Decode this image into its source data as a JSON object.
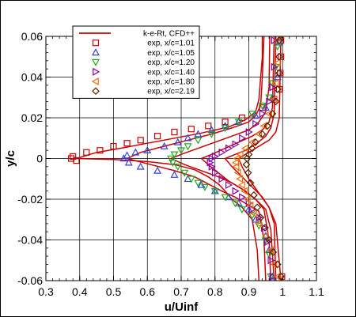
{
  "chart_data": {
    "type": "scatter",
    "xlabel": "u/Uinf",
    "ylabel": "y/c",
    "xlim": [
      0.3,
      1.1
    ],
    "ylim": [
      -0.06,
      0.06
    ],
    "x_ticks": [
      0.3,
      0.4,
      0.5,
      0.6,
      0.7,
      0.8,
      0.9,
      1,
      1.1
    ],
    "y_ticks": [
      -0.06,
      -0.04,
      -0.02,
      0,
      0.02,
      0.04,
      0.06
    ],
    "grid": true,
    "legend_position": "top-left",
    "series": [
      {
        "name": "k-e-Rt, CFD++",
        "kind": "line",
        "color": "#cc0000",
        "group": "cfd",
        "curves": [
          {
            "x": [
              0.39,
              0.45,
              0.52,
              0.6,
              0.68,
              0.76,
              0.84,
              0.89,
              0.92,
              0.93,
              0.935,
              0.94,
              0.94
            ],
            "y": [
              0,
              0.003,
              0.005,
              0.0075,
              0.01,
              0.0125,
              0.0155,
              0.019,
              0.023,
              0.029,
              0.04,
              0.05,
              0.06
            ]
          },
          {
            "x": [
              0.39,
              0.5,
              0.6,
              0.68,
              0.74,
              0.78,
              0.81,
              0.83,
              0.85,
              0.88,
              0.91,
              0.925,
              0.93
            ],
            "y": [
              0,
              -0.0005,
              -0.0015,
              -0.003,
              -0.0055,
              -0.009,
              -0.0125,
              -0.016,
              -0.02,
              -0.024,
              -0.03,
              -0.045,
              -0.06
            ]
          },
          {
            "x": [
              0.54,
              0.58,
              0.65,
              0.72,
              0.79,
              0.85,
              0.9,
              0.92,
              0.935,
              0.94,
              0.945
            ],
            "y": [
              0,
              0.003,
              0.006,
              0.009,
              0.012,
              0.015,
              0.018,
              0.021,
              0.026,
              0.04,
              0.06
            ]
          },
          {
            "x": [
              0.54,
              0.61,
              0.68,
              0.74,
              0.78,
              0.82,
              0.86,
              0.89,
              0.93,
              0.945,
              0.95
            ],
            "y": [
              0,
              -0.003,
              -0.006,
              -0.009,
              -0.0125,
              -0.016,
              -0.019,
              -0.022,
              -0.026,
              -0.04,
              -0.06
            ]
          },
          {
            "x": [
              0.67,
              0.7,
              0.75,
              0.8,
              0.85,
              0.9,
              0.93,
              0.95,
              0.96,
              0.962
            ],
            "y": [
              0,
              0.002,
              0.005,
              0.008,
              0.011,
              0.014,
              0.018,
              0.023,
              0.035,
              0.06
            ]
          },
          {
            "x": [
              0.67,
              0.71,
              0.76,
              0.81,
              0.85,
              0.89,
              0.92,
              0.945,
              0.96,
              0.965
            ],
            "y": [
              0,
              -0.003,
              -0.006,
              -0.009,
              -0.012,
              -0.016,
              -0.02,
              -0.025,
              -0.04,
              -0.06
            ]
          },
          {
            "x": [
              0.76,
              0.79,
              0.83,
              0.87,
              0.91,
              0.94,
              0.96,
              0.97,
              0.975
            ],
            "y": [
              0,
              0.002,
              0.005,
              0.008,
              0.011,
              0.014,
              0.018,
              0.025,
              0.06
            ]
          },
          {
            "x": [
              0.76,
              0.78,
              0.81,
              0.84,
              0.88,
              0.92,
              0.95,
              0.965,
              0.975
            ],
            "y": [
              0,
              -0.003,
              -0.007,
              -0.011,
              -0.015,
              -0.02,
              -0.025,
              -0.035,
              -0.06
            ]
          },
          {
            "x": [
              0.83,
              0.86,
              0.89,
              0.92,
              0.95,
              0.965,
              0.975,
              0.98
            ],
            "y": [
              0,
              0.002,
              0.004,
              0.007,
              0.011,
              0.015,
              0.022,
              0.06
            ]
          },
          {
            "x": [
              0.83,
              0.85,
              0.88,
              0.91,
              0.94,
              0.96,
              0.975,
              0.98
            ],
            "y": [
              0,
              -0.004,
              -0.009,
              -0.014,
              -0.019,
              -0.024,
              -0.032,
              -0.06
            ]
          },
          {
            "x": [
              0.87,
              0.9,
              0.93,
              0.96,
              0.98,
              0.99,
              0.995
            ],
            "y": [
              0,
              0.003,
              0.006,
              0.009,
              0.013,
              0.02,
              0.06
            ]
          },
          {
            "x": [
              0.87,
              0.88,
              0.9,
              0.93,
              0.96,
              0.98,
              0.995
            ],
            "y": [
              0,
              -0.004,
              -0.01,
              -0.017,
              -0.024,
              -0.032,
              -0.06
            ]
          }
        ]
      },
      {
        "name": "exp, x/c=1.01",
        "kind": "marker",
        "marker": "square",
        "color": "#cc0000",
        "points": [
          [
            0.995,
            0.058
          ],
          [
            0.995,
            0.05
          ],
          [
            0.993,
            0.042
          ],
          [
            0.99,
            0.034
          ],
          [
            0.975,
            0.029
          ],
          [
            0.94,
            0.025
          ],
          [
            0.88,
            0.02
          ],
          [
            0.83,
            0.018
          ],
          [
            0.78,
            0.016
          ],
          [
            0.73,
            0.0145
          ],
          [
            0.68,
            0.013
          ],
          [
            0.63,
            0.011
          ],
          [
            0.58,
            0.009
          ],
          [
            0.54,
            0.0075
          ],
          [
            0.5,
            0.006
          ],
          [
            0.46,
            0.004
          ],
          [
            0.42,
            0.003
          ],
          [
            0.38,
            0.001
          ],
          [
            0.375,
            0
          ],
          [
            0.39,
            -0.001
          ],
          [
            0.998,
            -0.058
          ]
        ]
      },
      {
        "name": "exp, x/c=1.05",
        "kind": "marker",
        "marker": "triangle-up",
        "color": "#3344dd",
        "points": [
          [
            0.99,
            0.057
          ],
          [
            0.985,
            0.04
          ],
          [
            0.97,
            0.03
          ],
          [
            0.95,
            0.025
          ],
          [
            0.92,
            0.021
          ],
          [
            0.87,
            0.018
          ],
          [
            0.83,
            0.016
          ],
          [
            0.79,
            0.014
          ],
          [
            0.75,
            0.012
          ],
          [
            0.72,
            0.01
          ],
          [
            0.69,
            0.008
          ],
          [
            0.65,
            0.006
          ],
          [
            0.6,
            0.004
          ],
          [
            0.565,
            0.003
          ],
          [
            0.54,
            0.0015
          ],
          [
            0.53,
            0
          ],
          [
            0.545,
            -0.002
          ],
          [
            0.58,
            -0.004
          ],
          [
            0.63,
            -0.006
          ],
          [
            0.68,
            -0.008
          ],
          [
            0.72,
            -0.01
          ],
          [
            0.76,
            -0.013
          ],
          [
            0.8,
            -0.016
          ],
          [
            0.84,
            -0.019
          ],
          [
            0.87,
            -0.022
          ],
          [
            0.9,
            -0.025
          ],
          [
            0.92,
            -0.03
          ],
          [
            0.95,
            -0.038
          ],
          [
            0.96,
            -0.045
          ],
          [
            0.97,
            -0.058
          ]
        ]
      },
      {
        "name": "exp, x/c=1.20",
        "kind": "marker",
        "marker": "triangle-down",
        "color": "#22aa22",
        "points": [
          [
            0.985,
            0.055
          ],
          [
            0.98,
            0.045
          ],
          [
            0.97,
            0.037
          ],
          [
            0.96,
            0.03
          ],
          [
            0.94,
            0.026
          ],
          [
            0.91,
            0.022
          ],
          [
            0.87,
            0.018
          ],
          [
            0.83,
            0.015
          ],
          [
            0.79,
            0.012
          ],
          [
            0.75,
            0.009
          ],
          [
            0.72,
            0.006
          ],
          [
            0.7,
            0.004
          ],
          [
            0.68,
            0.002
          ],
          [
            0.67,
            0
          ],
          [
            0.675,
            -0.002
          ],
          [
            0.69,
            -0.004
          ],
          [
            0.71,
            -0.007
          ],
          [
            0.73,
            -0.01
          ],
          [
            0.75,
            -0.012
          ],
          [
            0.77,
            -0.014
          ],
          [
            0.8,
            -0.016
          ],
          [
            0.83,
            -0.019
          ],
          [
            0.86,
            -0.022
          ],
          [
            0.88,
            -0.025
          ],
          [
            0.91,
            -0.028
          ],
          [
            0.93,
            -0.033
          ],
          [
            0.95,
            -0.04
          ],
          [
            0.96,
            -0.047
          ],
          [
            0.965,
            -0.058
          ]
        ]
      },
      {
        "name": "exp, x/c=1.40",
        "kind": "marker",
        "marker": "triangle-right",
        "color": "#8800aa",
        "points": [
          [
            0.975,
            0.058
          ],
          [
            0.975,
            0.045
          ],
          [
            0.97,
            0.035
          ],
          [
            0.96,
            0.028
          ],
          [
            0.94,
            0.022
          ],
          [
            0.92,
            0.017
          ],
          [
            0.9,
            0.013
          ],
          [
            0.88,
            0.01
          ],
          [
            0.86,
            0.007
          ],
          [
            0.84,
            0.005
          ],
          [
            0.82,
            0.003
          ],
          [
            0.8,
            0.001
          ],
          [
            0.79,
            0
          ],
          [
            0.785,
            -0.002
          ],
          [
            0.79,
            -0.004
          ],
          [
            0.8,
            -0.007
          ],
          [
            0.82,
            -0.01
          ],
          [
            0.84,
            -0.013
          ],
          [
            0.86,
            -0.016
          ],
          [
            0.88,
            -0.019
          ],
          [
            0.9,
            -0.022
          ],
          [
            0.91,
            -0.025
          ],
          [
            0.93,
            -0.029
          ],
          [
            0.945,
            -0.034
          ],
          [
            0.955,
            -0.041
          ],
          [
            0.965,
            -0.05
          ],
          [
            0.97,
            -0.058
          ]
        ]
      },
      {
        "name": "exp, x/c=1.80",
        "kind": "marker",
        "marker": "triangle-left",
        "color": "#ff6600",
        "points": [
          [
            0.985,
            0.058
          ],
          [
            0.985,
            0.047
          ],
          [
            0.98,
            0.037
          ],
          [
            0.975,
            0.029
          ],
          [
            0.96,
            0.022
          ],
          [
            0.945,
            0.016
          ],
          [
            0.93,
            0.012
          ],
          [
            0.91,
            0.008
          ],
          [
            0.89,
            0.005
          ],
          [
            0.875,
            0.002
          ],
          [
            0.865,
            0
          ],
          [
            0.862,
            -0.002
          ],
          [
            0.863,
            -0.004
          ],
          [
            0.868,
            -0.007
          ],
          [
            0.874,
            -0.01
          ],
          [
            0.88,
            -0.013
          ],
          [
            0.888,
            -0.016
          ],
          [
            0.896,
            -0.02
          ],
          [
            0.905,
            -0.023
          ],
          [
            0.915,
            -0.027
          ],
          [
            0.93,
            -0.032
          ],
          [
            0.95,
            -0.038
          ],
          [
            0.965,
            -0.045
          ],
          [
            0.975,
            -0.052
          ],
          [
            0.985,
            -0.058
          ]
        ]
      },
      {
        "name": "exp, x/c=2.19",
        "kind": "marker",
        "marker": "diamond",
        "color": "#552200",
        "points": [
          [
            0.99,
            0.058
          ],
          [
            0.99,
            0.05
          ],
          [
            0.99,
            0.042
          ],
          [
            0.985,
            0.034
          ],
          [
            0.98,
            0.028
          ],
          [
            0.97,
            0.022
          ],
          [
            0.955,
            0.016
          ],
          [
            0.94,
            0.012
          ],
          [
            0.92,
            0.008
          ],
          [
            0.91,
            0.005
          ],
          [
            0.9,
            0.002
          ],
          [
            0.895,
            0
          ],
          [
            0.893,
            -0.003
          ],
          [
            0.898,
            -0.007
          ],
          [
            0.905,
            -0.012
          ],
          [
            0.915,
            -0.018
          ],
          [
            0.925,
            -0.024
          ],
          [
            0.935,
            -0.029
          ],
          [
            0.948,
            -0.034
          ],
          [
            0.96,
            -0.04
          ],
          [
            0.972,
            -0.046
          ],
          [
            0.985,
            -0.052
          ],
          [
            0.995,
            -0.058
          ]
        ]
      }
    ]
  }
}
